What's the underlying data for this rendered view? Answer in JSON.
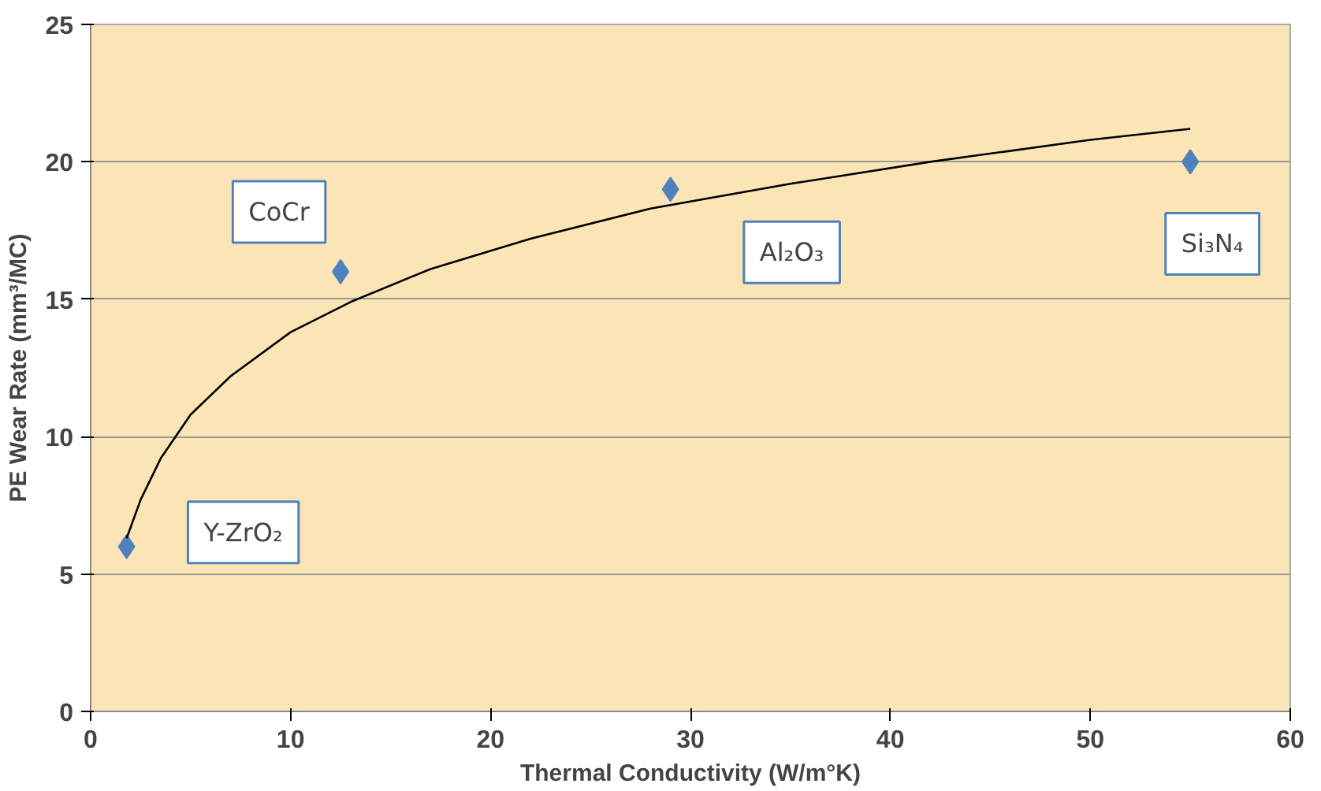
{
  "chart_data": {
    "type": "scatter",
    "xlabel": "Thermal Conductivity (W/m°K)",
    "ylabel": "PE Wear Rate (mm³/MC)",
    "xlim": [
      0,
      60
    ],
    "ylim": [
      0,
      25
    ],
    "xticks": [
      0,
      10,
      20,
      30,
      40,
      50,
      60
    ],
    "yticks": [
      0,
      5,
      10,
      15,
      20,
      25
    ],
    "grid": "y",
    "series": [
      {
        "color": "#4f81bd",
        "marker": "diamond",
        "x": [
          1.8,
          12.5,
          29,
          55
        ],
        "values": [
          6,
          16,
          19,
          20
        ]
      },
      {
        "type": "line",
        "marker": "none",
        "color": "#000000",
        "x": [
          1.8,
          2.5,
          3.5,
          5,
          7,
          10,
          13,
          17,
          22,
          28,
          35,
          42,
          50,
          55
        ],
        "values": [
          6.3,
          7.7,
          9.2,
          10.8,
          12.2,
          13.8,
          14.9,
          16.1,
          17.2,
          18.3,
          19.2,
          20.0,
          20.8,
          21.2
        ]
      }
    ],
    "annotations": [
      "Y-ZrO₂",
      "CoCr",
      "Al₂O₃",
      "Si₃N₄"
    ]
  }
}
